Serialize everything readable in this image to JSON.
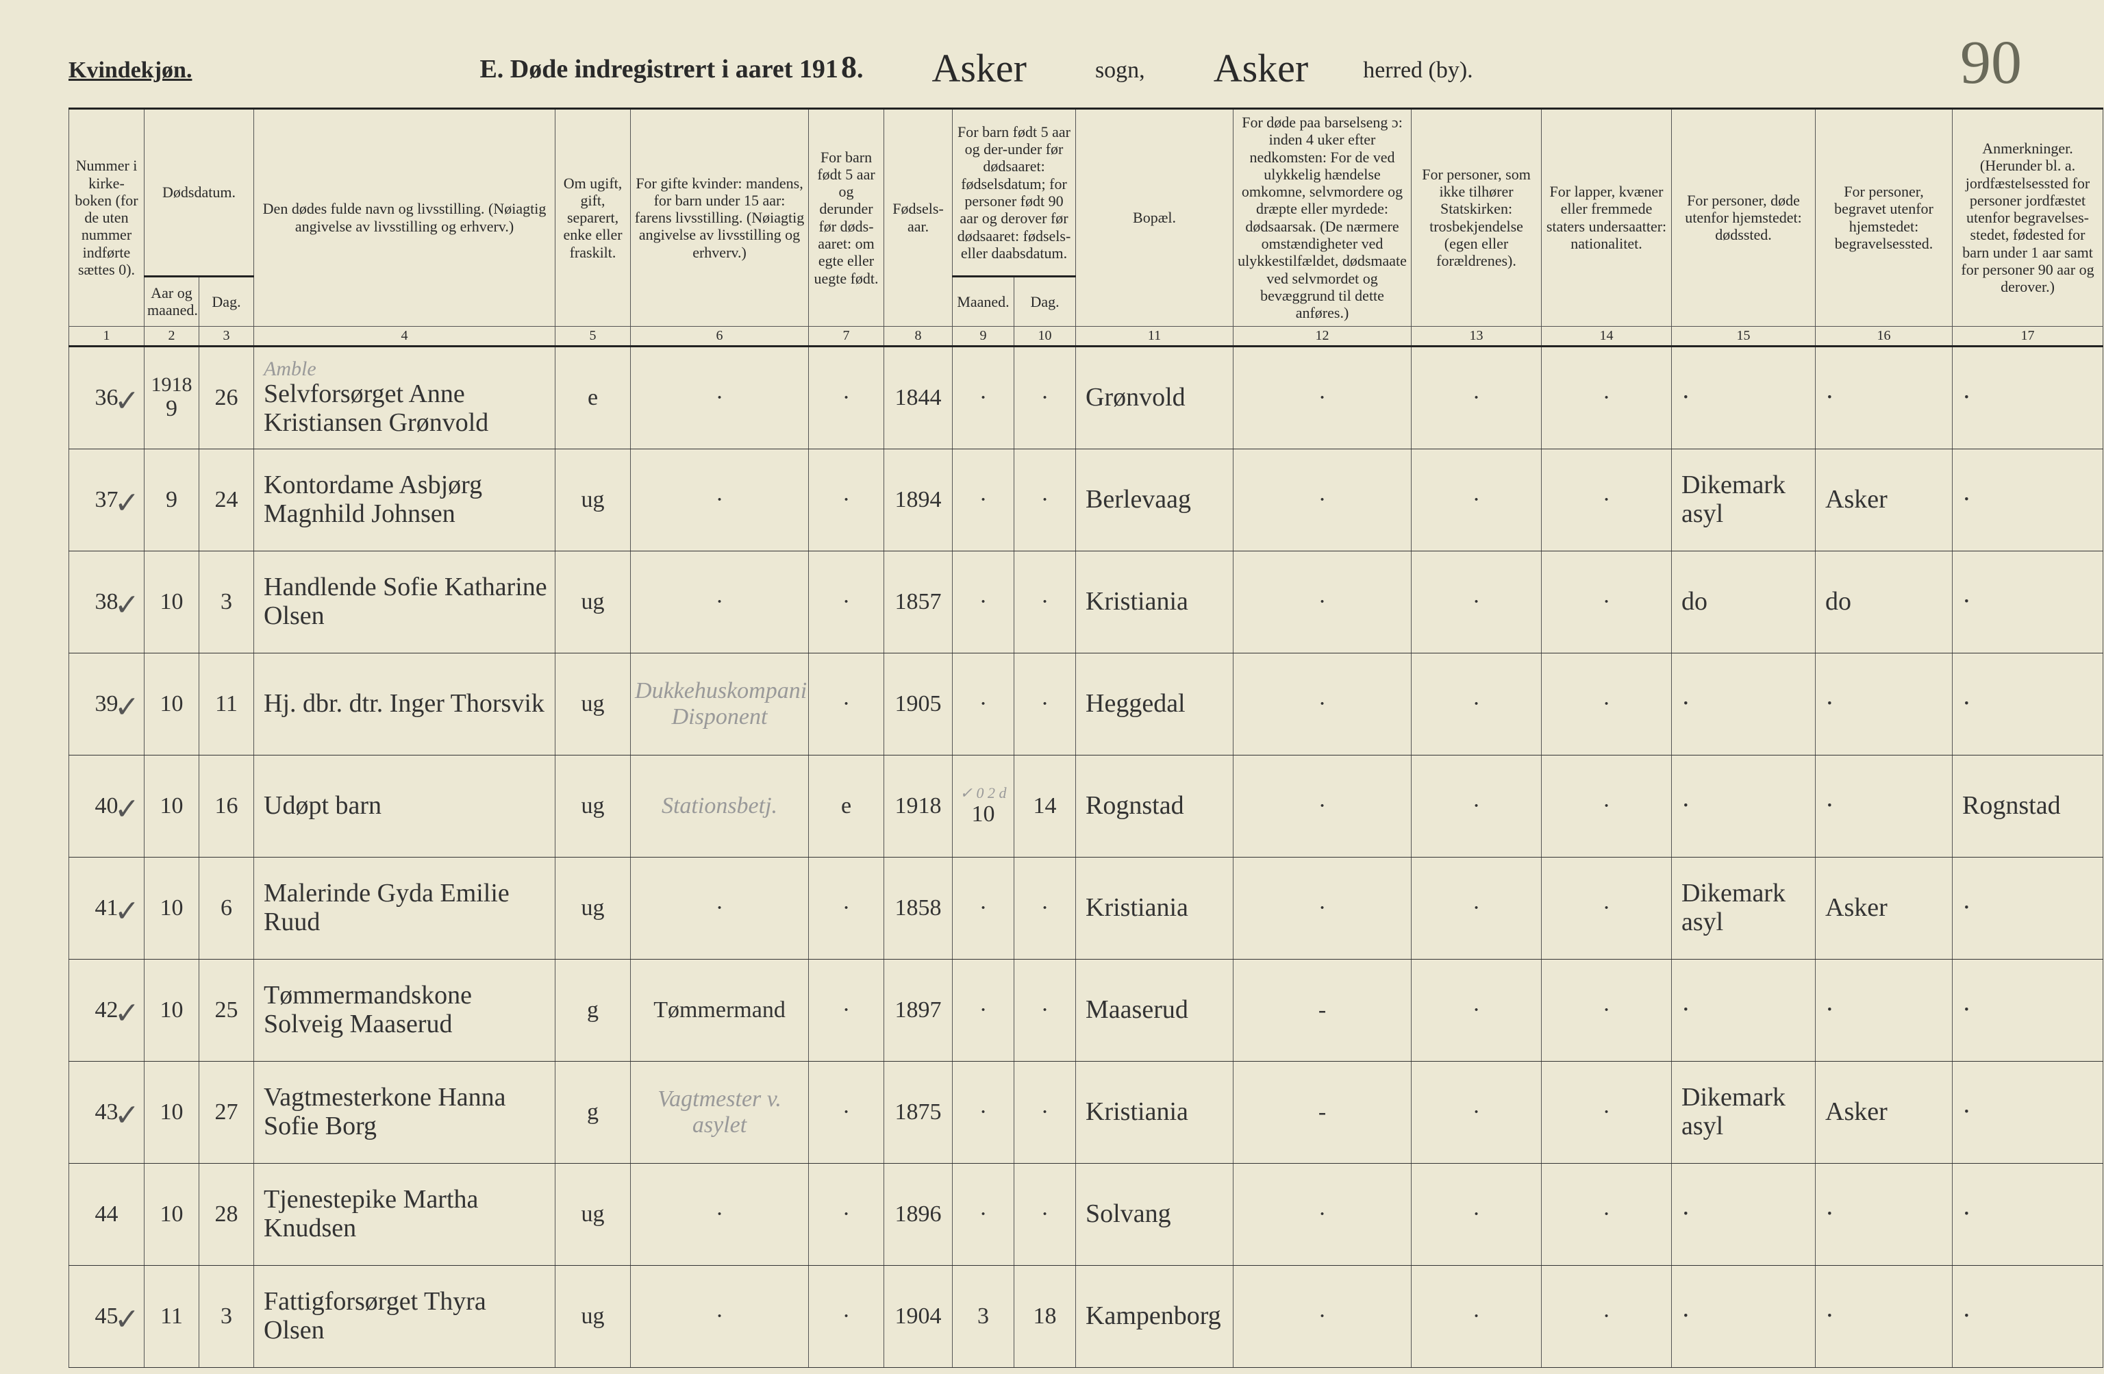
{
  "header": {
    "gender": "Kvindekjøn.",
    "title_prefix": "E.  Døde indregistrert i aaret 191",
    "year_digit": "8",
    "sogn_name": "Asker",
    "sogn_label": "sogn,",
    "herred_name": "Asker",
    "herred_label": "herred (by).",
    "page_number": "90"
  },
  "columns": {
    "c1": "Nummer i kirke-boken (for de uten nummer indførte sættes 0).",
    "c2a": "Dødsdatum.",
    "c2": "Aar og maaned.",
    "c3": "Dag.",
    "c4": "Den dødes fulde navn og livsstilling.\n(Nøiagtig angivelse av livsstilling og erhverv.)",
    "c5": "Om ugift, gift, separert, enke eller fraskilt.",
    "c6": "For gifte kvinder: mandens,\nfor barn under 15 aar: farens livsstilling.\n(Nøiagtig angivelse av livsstilling og erhverv.)",
    "c7": "For barn født 5 aar og derunder før døds-aaret: om egte eller uegte født.",
    "c8": "Fødsels-aar.",
    "c9a": "For barn født 5 aar og der-under før dødsaaret: fødselsdatum; for personer født 90 aar og derover før dødsaaret: fødsels- eller daabsdatum.",
    "c9": "Maaned.",
    "c10": "Dag.",
    "c11": "Bopæl.",
    "c12": "For døde paa barselseng ɔ: inden 4 uker efter nedkomsten:\nFor de ved ulykkelig hændelse omkomne, selvmordere og dræpte eller myrdede: dødsaarsak.\n(De nærmere omstændigheter ved ulykkestilfældet, dødsmaate ved selvmordet og bevæggrund til dette anføres.)",
    "c13": "For personer, som ikke tilhører Statskirken: trosbekjendelse (egen eller forældrenes).",
    "c14": "For lapper, kvæner eller fremmede staters undersaatter: nationalitet.",
    "c15": "For personer, døde utenfor hjemstedet: dødssted.",
    "c16": "For personer, begravet utenfor hjemstedet: begravelsessted.",
    "c17": "Anmerkninger.\n(Herunder bl. a. jordfæstelsessted for personer jordfæstet utenfor begravelses-stedet, fødested for barn under 1 aar samt for personer 90 aar og derover.)"
  },
  "colnums": [
    "1",
    "2",
    "3",
    "4",
    "5",
    "6",
    "7",
    "8",
    "9",
    "10",
    "11",
    "12",
    "13",
    "14",
    "15",
    "16",
    "17"
  ],
  "year_cell": "1918",
  "rows": [
    {
      "check": "✓",
      "no": "36",
      "month": "9",
      "day": "26",
      "name": "Selvforsørget Anne Kristiansen Grønvold",
      "status": "e",
      "father": "·",
      "legit": "·",
      "birthyear": "1844",
      "bmonth": "·",
      "bday": "·",
      "residence": "Grønvold",
      "cause": "·",
      "faith": "·",
      "nation": "·",
      "deathplace": "·",
      "burial": "·",
      "remark": "·",
      "name_note": "Amble"
    },
    {
      "check": "✓",
      "no": "37",
      "month": "9",
      "day": "24",
      "name": "Kontordame Asbjørg Magnhild Johnsen",
      "status": "ug",
      "father": "·",
      "legit": "·",
      "birthyear": "1894",
      "bmonth": "·",
      "bday": "·",
      "residence": "Berlevaag",
      "cause": "·",
      "faith": "·",
      "nation": "·",
      "deathplace": "Dikemark asyl",
      "burial": "Asker",
      "remark": "·"
    },
    {
      "check": "✓",
      "no": "38",
      "month": "10",
      "day": "3",
      "name": "Handlende Sofie Katharine Olsen",
      "status": "ug",
      "father": "·",
      "legit": "·",
      "birthyear": "1857",
      "bmonth": "·",
      "bday": "·",
      "residence": "Kristiania",
      "cause": "·",
      "faith": "·",
      "nation": "·",
      "deathplace": "do",
      "burial": "do",
      "remark": "·"
    },
    {
      "check": "✓",
      "no": "39",
      "month": "10",
      "day": "11",
      "name": "Hj. dbr. dtr. Inger Thorsvik",
      "status": "ug",
      "father": "Dukkehuskompani Disponent",
      "legit": "·",
      "birthyear": "1905",
      "bmonth": "·",
      "bday": "·",
      "residence": "Heggedal",
      "cause": "·",
      "faith": "·",
      "nation": "·",
      "deathplace": "·",
      "burial": "·",
      "remark": "·"
    },
    {
      "check": "✓",
      "no": "40",
      "month": "10",
      "day": "16",
      "name": "Udøpt barn",
      "status": "ug",
      "father": "Stationsbetj.",
      "legit": "e",
      "birthyear": "1918",
      "bmonth": "10",
      "bday": "14",
      "residence": "Rognstad",
      "cause": "·",
      "faith": "·",
      "nation": "·",
      "deathplace": "·",
      "burial": "·",
      "remark": "Rognstad",
      "above9": "✓ 0 2 d"
    },
    {
      "check": "✓",
      "no": "41",
      "month": "10",
      "day": "6",
      "name": "Malerinde Gyda Emilie Ruud",
      "status": "ug",
      "father": "·",
      "legit": "·",
      "birthyear": "1858",
      "bmonth": "·",
      "bday": "·",
      "residence": "Kristiania",
      "cause": "·",
      "faith": "·",
      "nation": "·",
      "deathplace": "Dikemark asyl",
      "burial": "Asker",
      "remark": "·"
    },
    {
      "check": "✓",
      "no": "42",
      "month": "10",
      "day": "25",
      "name": "Tømmermandskone Solveig Maaserud",
      "status": "g",
      "father": "Tømmermand",
      "legit": "·",
      "birthyear": "1897",
      "bmonth": "·",
      "bday": "·",
      "residence": "Maaserud",
      "cause": "-",
      "faith": "·",
      "nation": "·",
      "deathplace": "·",
      "burial": "·",
      "remark": "·"
    },
    {
      "check": "✓",
      "no": "43",
      "month": "10",
      "day": "27",
      "name": "Vagtmesterkone Hanna Sofie Borg",
      "status": "g",
      "father": "Vagtmester v. asylet",
      "legit": "·",
      "birthyear": "1875",
      "bmonth": "·",
      "bday": "·",
      "residence": "Kristiania",
      "cause": "-",
      "faith": "·",
      "nation": "·",
      "deathplace": "Dikemark asyl",
      "burial": "Asker",
      "remark": "·"
    },
    {
      "check": "",
      "no": "44",
      "month": "10",
      "day": "28",
      "name": "Tjenestepike Martha Knudsen",
      "status": "ug",
      "father": "·",
      "legit": "·",
      "birthyear": "1896",
      "bmonth": "·",
      "bday": "·",
      "residence": "Solvang",
      "cause": "·",
      "faith": "·",
      "nation": "·",
      "deathplace": "·",
      "burial": "·",
      "remark": "·"
    },
    {
      "check": "✓",
      "no": "45",
      "month": "11",
      "day": "3",
      "name": "Fattigforsørget Thyra Olsen",
      "status": "ug",
      "father": "·",
      "legit": "·",
      "birthyear": "1904",
      "bmonth": "3",
      "bday": "18",
      "residence": "Kampenborg",
      "cause": "·",
      "faith": "·",
      "nation": "·",
      "deathplace": "·",
      "burial": "·",
      "remark": "·"
    }
  ],
  "style": {
    "background": "#ece8d4",
    "border_color": "#333",
    "print_font": "Times New Roman",
    "script_font": "Brush Script MT"
  }
}
